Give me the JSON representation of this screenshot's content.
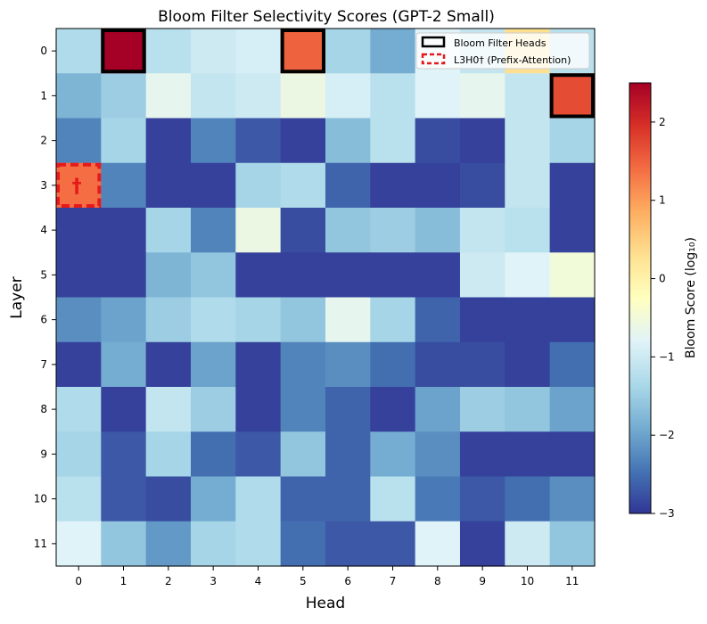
{
  "chart_data": {
    "type": "heatmap",
    "title": "Bloom Filter Selectivity Scores (GPT-2 Small)",
    "xlabel": "Head",
    "ylabel": "Layer",
    "x_ticks": [
      "0",
      "1",
      "2",
      "3",
      "4",
      "5",
      "6",
      "7",
      "8",
      "9",
      "10",
      "11"
    ],
    "y_ticks": [
      "0",
      "1",
      "2",
      "3",
      "4",
      "5",
      "6",
      "7",
      "8",
      "9",
      "10",
      "11"
    ],
    "colormap": "RdYlBu_r",
    "vmin": -3,
    "vmax": 2.5,
    "colorbar": {
      "label": "Bloom Score (log₁₀)",
      "ticks": [
        2,
        1,
        0,
        -1,
        -2,
        -3
      ],
      "tick_labels": [
        "2",
        "1",
        "0",
        "−1",
        "−2",
        "−3"
      ]
    },
    "values": [
      [
        -1.3,
        2.5,
        -1.2,
        -1.0,
        -0.9,
        1.5,
        -1.4,
        -1.9,
        -0.8,
        -1.1,
        0.3,
        -1.2
      ],
      [
        -1.8,
        -1.5,
        -0.7,
        -1.1,
        -1.0,
        -0.6,
        -0.9,
        -1.2,
        -0.8,
        -0.7,
        -1.1,
        1.7
      ],
      [
        -2.3,
        -1.4,
        -2.9,
        -2.3,
        -2.7,
        -2.9,
        -1.7,
        -1.2,
        -2.8,
        -2.9,
        -1.1,
        -1.4
      ],
      [
        1.4,
        -2.3,
        -2.9,
        -2.9,
        -1.4,
        -1.3,
        -2.6,
        -2.9,
        -2.9,
        -2.8,
        -1.1,
        -2.9
      ],
      [
        -2.9,
        -2.9,
        -1.4,
        -2.3,
        -0.6,
        -2.8,
        -1.6,
        -1.5,
        -1.7,
        -1.1,
        -1.2,
        -2.9
      ],
      [
        -2.9,
        -2.9,
        -1.8,
        -1.6,
        -2.9,
        -2.9,
        -2.9,
        -2.9,
        -2.9,
        -1.0,
        -0.8,
        -0.5
      ],
      [
        -2.2,
        -2.0,
        -1.5,
        -1.3,
        -1.4,
        -1.6,
        -0.7,
        -1.4,
        -2.6,
        -2.9,
        -2.9,
        -2.9
      ],
      [
        -2.9,
        -1.9,
        -2.9,
        -2.0,
        -2.9,
        -2.3,
        -2.2,
        -2.5,
        -2.8,
        -2.8,
        -2.9,
        -2.5
      ],
      [
        -1.3,
        -2.9,
        -1.1,
        -1.5,
        -2.9,
        -2.3,
        -2.6,
        -2.9,
        -2.0,
        -1.5,
        -1.6,
        -2.0
      ],
      [
        -1.4,
        -2.7,
        -1.4,
        -2.5,
        -2.7,
        -1.6,
        -2.6,
        -1.9,
        -2.2,
        -2.9,
        -2.9,
        -2.9
      ],
      [
        -1.2,
        -2.7,
        -2.8,
        -1.9,
        -1.3,
        -2.6,
        -2.6,
        -1.2,
        -2.4,
        -2.7,
        -2.5,
        -2.2
      ],
      [
        -0.8,
        -1.6,
        -2.1,
        -1.4,
        -1.3,
        -2.5,
        -2.7,
        -2.7,
        -0.8,
        -2.9,
        -1.0,
        -1.6
      ]
    ],
    "bloom_filter_heads": [
      [
        0,
        1
      ],
      [
        0,
        5
      ],
      [
        1,
        11
      ]
    ],
    "prefix_attention_heads": [
      [
        3,
        0
      ]
    ],
    "cell_marker": {
      "layer": 3,
      "head": 0,
      "symbol": "†"
    },
    "legend": {
      "position": "top-right",
      "entries": [
        {
          "label": "Bloom Filter Heads",
          "style": "solid-black"
        },
        {
          "label": "L3H0† (Prefix-Attention)",
          "style": "dashed-red"
        }
      ]
    }
  }
}
